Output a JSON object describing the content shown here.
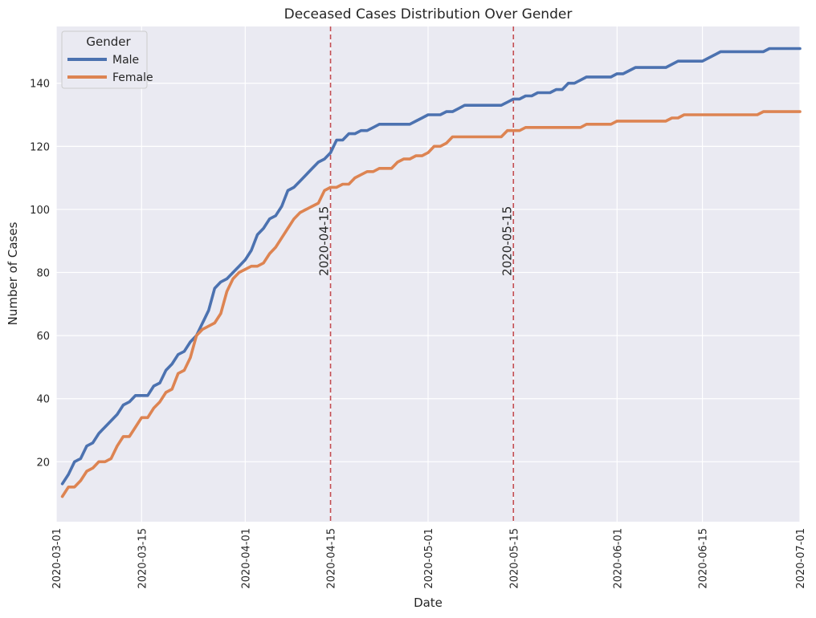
{
  "chart_data": {
    "type": "line",
    "title": "Deceased Cases Distribution Over Gender",
    "xlabel": "Date",
    "ylabel": "Number of Cases",
    "x_range": [
      "2020-03-01",
      "2020-07-01"
    ],
    "ylim": [
      1,
      158
    ],
    "x_ticks": [
      "2020-03-01",
      "2020-03-15",
      "2020-04-01",
      "2020-04-15",
      "2020-05-01",
      "2020-05-15",
      "2020-06-01",
      "2020-06-15",
      "2020-07-01"
    ],
    "y_ticks": [
      20,
      40,
      60,
      80,
      100,
      120,
      140
    ],
    "grid": true,
    "legend": {
      "title": "Gender",
      "position": "top-left"
    },
    "reference_lines": [
      {
        "x": "2020-04-15",
        "label": "2020-04-15",
        "color": "#c44e52"
      },
      {
        "x": "2020-05-15",
        "label": "2020-05-15",
        "color": "#c44e52"
      }
    ],
    "series": [
      {
        "name": "Male",
        "color": "#4c72b0",
        "points": [
          [
            "2020-03-02",
            13
          ],
          [
            "2020-03-03",
            16
          ],
          [
            "2020-03-04",
            20
          ],
          [
            "2020-03-05",
            21
          ],
          [
            "2020-03-06",
            25
          ],
          [
            "2020-03-07",
            26
          ],
          [
            "2020-03-08",
            29
          ],
          [
            "2020-03-09",
            31
          ],
          [
            "2020-03-10",
            33
          ],
          [
            "2020-03-11",
            35
          ],
          [
            "2020-03-12",
            38
          ],
          [
            "2020-03-13",
            39
          ],
          [
            "2020-03-14",
            41
          ],
          [
            "2020-03-16",
            41
          ],
          [
            "2020-03-17",
            44
          ],
          [
            "2020-03-18",
            45
          ],
          [
            "2020-03-19",
            49
          ],
          [
            "2020-03-20",
            51
          ],
          [
            "2020-03-21",
            54
          ],
          [
            "2020-03-22",
            55
          ],
          [
            "2020-03-23",
            58
          ],
          [
            "2020-03-24",
            60
          ],
          [
            "2020-03-25",
            64
          ],
          [
            "2020-03-26",
            68
          ],
          [
            "2020-03-27",
            75
          ],
          [
            "2020-03-28",
            77
          ],
          [
            "2020-03-29",
            78
          ],
          [
            "2020-03-30",
            80
          ],
          [
            "2020-03-31",
            82
          ],
          [
            "2020-04-01",
            84
          ],
          [
            "2020-04-02",
            87
          ],
          [
            "2020-04-03",
            92
          ],
          [
            "2020-04-04",
            94
          ],
          [
            "2020-04-05",
            97
          ],
          [
            "2020-04-06",
            98
          ],
          [
            "2020-04-07",
            101
          ],
          [
            "2020-04-08",
            106
          ],
          [
            "2020-04-09",
            107
          ],
          [
            "2020-04-10",
            109
          ],
          [
            "2020-04-11",
            111
          ],
          [
            "2020-04-12",
            113
          ],
          [
            "2020-04-13",
            115
          ],
          [
            "2020-04-14",
            116
          ],
          [
            "2020-04-15",
            118
          ],
          [
            "2020-04-16",
            122
          ],
          [
            "2020-04-17",
            122
          ],
          [
            "2020-04-18",
            124
          ],
          [
            "2020-04-19",
            124
          ],
          [
            "2020-04-20",
            125
          ],
          [
            "2020-04-21",
            125
          ],
          [
            "2020-04-22",
            126
          ],
          [
            "2020-04-23",
            127
          ],
          [
            "2020-04-28",
            127
          ],
          [
            "2020-04-29",
            128
          ],
          [
            "2020-04-30",
            129
          ],
          [
            "2020-05-01",
            130
          ],
          [
            "2020-05-03",
            130
          ],
          [
            "2020-05-04",
            131
          ],
          [
            "2020-05-05",
            131
          ],
          [
            "2020-05-06",
            132
          ],
          [
            "2020-05-07",
            133
          ],
          [
            "2020-05-13",
            133
          ],
          [
            "2020-05-14",
            134
          ],
          [
            "2020-05-15",
            135
          ],
          [
            "2020-05-16",
            135
          ],
          [
            "2020-05-17",
            136
          ],
          [
            "2020-05-18",
            136
          ],
          [
            "2020-05-19",
            137
          ],
          [
            "2020-05-21",
            137
          ],
          [
            "2020-05-22",
            138
          ],
          [
            "2020-05-23",
            138
          ],
          [
            "2020-05-24",
            140
          ],
          [
            "2020-05-25",
            140
          ],
          [
            "2020-05-26",
            141
          ],
          [
            "2020-05-27",
            142
          ],
          [
            "2020-05-31",
            142
          ],
          [
            "2020-06-01",
            143
          ],
          [
            "2020-06-02",
            143
          ],
          [
            "2020-06-03",
            144
          ],
          [
            "2020-06-04",
            145
          ],
          [
            "2020-06-09",
            145
          ],
          [
            "2020-06-11",
            147
          ],
          [
            "2020-06-15",
            147
          ],
          [
            "2020-06-17",
            149
          ],
          [
            "2020-06-18",
            150
          ],
          [
            "2020-06-25",
            150
          ],
          [
            "2020-06-26",
            151
          ],
          [
            "2020-07-01",
            151
          ]
        ]
      },
      {
        "name": "Female",
        "color": "#dd8452",
        "points": [
          [
            "2020-03-02",
            9
          ],
          [
            "2020-03-03",
            12
          ],
          [
            "2020-03-04",
            12
          ],
          [
            "2020-03-05",
            14
          ],
          [
            "2020-03-06",
            17
          ],
          [
            "2020-03-07",
            18
          ],
          [
            "2020-03-08",
            20
          ],
          [
            "2020-03-09",
            20
          ],
          [
            "2020-03-10",
            21
          ],
          [
            "2020-03-11",
            25
          ],
          [
            "2020-03-12",
            28
          ],
          [
            "2020-03-13",
            28
          ],
          [
            "2020-03-14",
            31
          ],
          [
            "2020-03-15",
            34
          ],
          [
            "2020-03-16",
            34
          ],
          [
            "2020-03-17",
            37
          ],
          [
            "2020-03-18",
            39
          ],
          [
            "2020-03-19",
            42
          ],
          [
            "2020-03-20",
            43
          ],
          [
            "2020-03-21",
            48
          ],
          [
            "2020-03-22",
            49
          ],
          [
            "2020-03-23",
            53
          ],
          [
            "2020-03-24",
            60
          ],
          [
            "2020-03-25",
            62
          ],
          [
            "2020-03-26",
            63
          ],
          [
            "2020-03-27",
            64
          ],
          [
            "2020-03-28",
            67
          ],
          [
            "2020-03-29",
            74
          ],
          [
            "2020-03-30",
            78
          ],
          [
            "2020-03-31",
            80
          ],
          [
            "2020-04-01",
            81
          ],
          [
            "2020-04-02",
            82
          ],
          [
            "2020-04-03",
            82
          ],
          [
            "2020-04-04",
            83
          ],
          [
            "2020-04-05",
            86
          ],
          [
            "2020-04-06",
            88
          ],
          [
            "2020-04-07",
            91
          ],
          [
            "2020-04-08",
            94
          ],
          [
            "2020-04-09",
            97
          ],
          [
            "2020-04-10",
            99
          ],
          [
            "2020-04-11",
            100
          ],
          [
            "2020-04-12",
            101
          ],
          [
            "2020-04-13",
            102
          ],
          [
            "2020-04-14",
            106
          ],
          [
            "2020-04-15",
            107
          ],
          [
            "2020-04-16",
            107
          ],
          [
            "2020-04-17",
            108
          ],
          [
            "2020-04-18",
            108
          ],
          [
            "2020-04-19",
            110
          ],
          [
            "2020-04-20",
            111
          ],
          [
            "2020-04-21",
            112
          ],
          [
            "2020-04-22",
            112
          ],
          [
            "2020-04-23",
            113
          ],
          [
            "2020-04-25",
            113
          ],
          [
            "2020-04-26",
            115
          ],
          [
            "2020-04-27",
            116
          ],
          [
            "2020-04-28",
            116
          ],
          [
            "2020-04-29",
            117
          ],
          [
            "2020-04-30",
            117
          ],
          [
            "2020-05-01",
            118
          ],
          [
            "2020-05-02",
            120
          ],
          [
            "2020-05-03",
            120
          ],
          [
            "2020-05-04",
            121
          ],
          [
            "2020-05-05",
            123
          ],
          [
            "2020-05-13",
            123
          ],
          [
            "2020-05-14",
            125
          ],
          [
            "2020-05-16",
            125
          ],
          [
            "2020-05-17",
            126
          ],
          [
            "2020-05-26",
            126
          ],
          [
            "2020-05-27",
            127
          ],
          [
            "2020-05-31",
            127
          ],
          [
            "2020-06-01",
            128
          ],
          [
            "2020-06-09",
            128
          ],
          [
            "2020-06-10",
            129
          ],
          [
            "2020-06-11",
            129
          ],
          [
            "2020-06-12",
            130
          ],
          [
            "2020-06-24",
            130
          ],
          [
            "2020-06-25",
            131
          ],
          [
            "2020-07-01",
            131
          ]
        ]
      }
    ]
  }
}
